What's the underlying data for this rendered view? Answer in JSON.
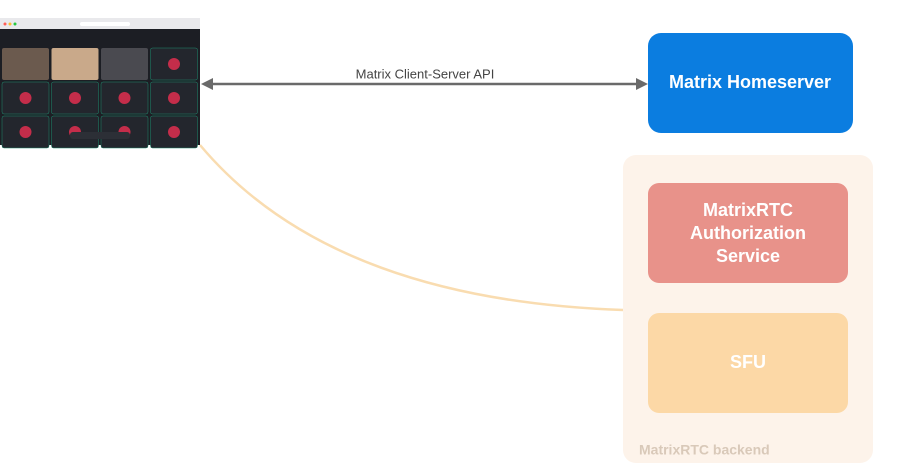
{
  "nodes": [
    {
      "label": "Matrix Homeserver"
    },
    {
      "label": [
        "MatrixRTC",
        "Authorization",
        "Service"
      ]
    },
    {
      "label": "SFU"
    }
  ],
  "edges": [
    {
      "label": "Matrix Client-Server API"
    }
  ],
  "groups": [
    {
      "label": "MatrixRTC backend"
    }
  ]
}
